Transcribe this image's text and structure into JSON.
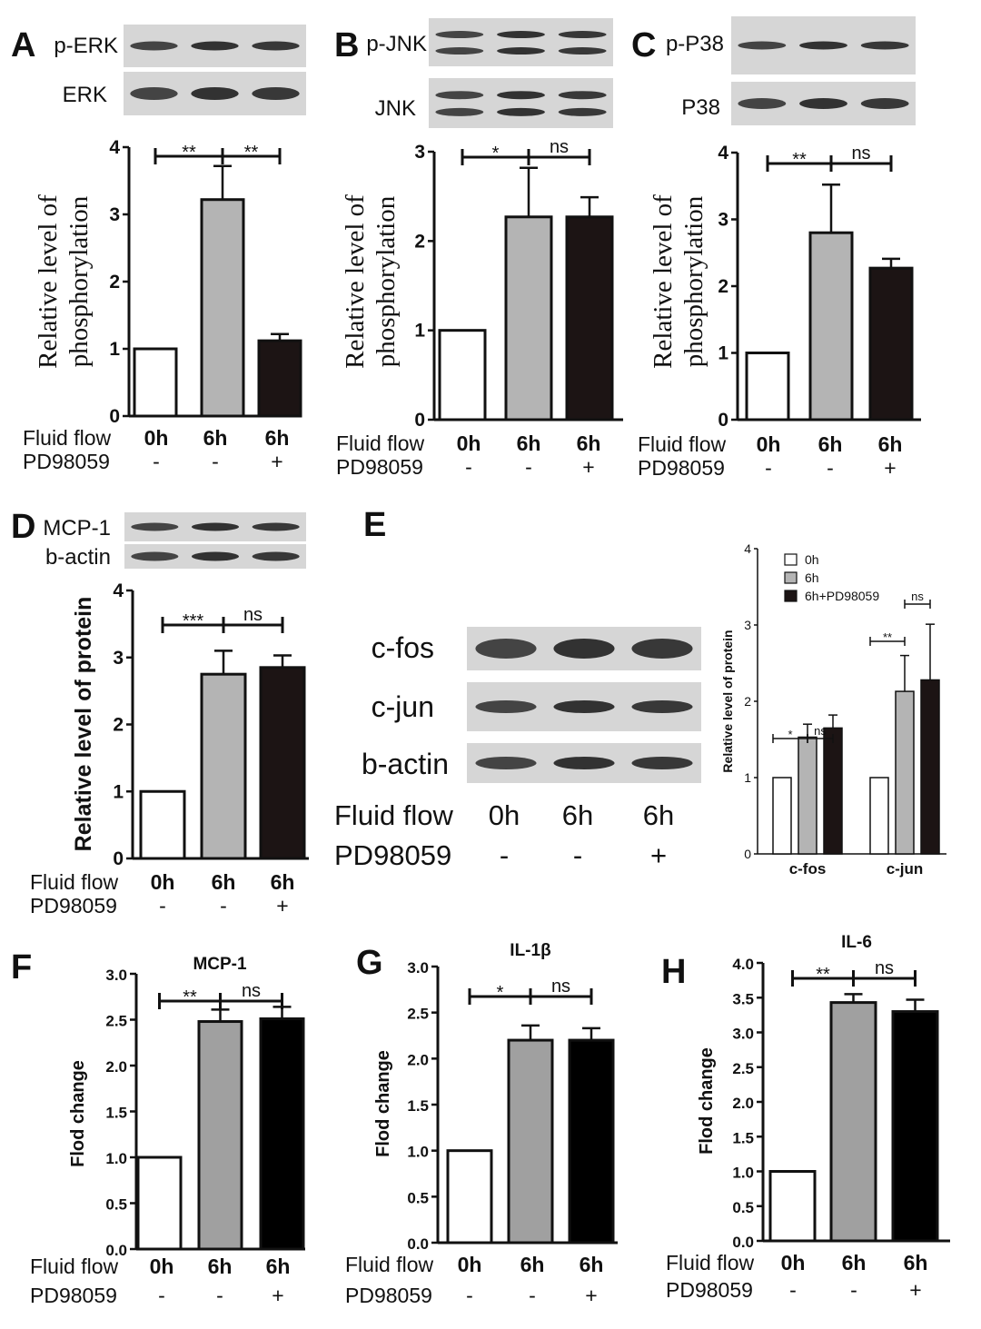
{
  "chart_data": [
    {
      "panel": "A",
      "type": "bar",
      "blots": [
        "p-ERK",
        "ERK"
      ],
      "categories": [
        "0h",
        "6h",
        "6h"
      ],
      "values": [
        1.0,
        3.22,
        1.12
      ],
      "errors": [
        0,
        0.5,
        0.1
      ],
      "fills": [
        "#ffffff",
        "#b4b4b4",
        "#1c1414"
      ],
      "ylabel": [
        "Relative level of",
        "phosphorylation"
      ],
      "ylim": [
        0,
        4
      ],
      "yticks": [
        "0",
        "1",
        "2",
        "3",
        "4"
      ],
      "conditions": [
        {
          "label": "Fluid flow",
          "values": [
            "0h",
            "6h",
            "6h"
          ]
        },
        {
          "label": "PD98059",
          "values": [
            "-",
            "-",
            "+"
          ]
        }
      ],
      "significance": [
        {
          "from": 0,
          "to": 1,
          "label": "**"
        },
        {
          "from": 1,
          "to": 2,
          "label": "**"
        }
      ]
    },
    {
      "panel": "B",
      "type": "bar",
      "blots": [
        "p-JNK",
        "JNK"
      ],
      "categories": [
        "0h",
        "6h",
        "6h"
      ],
      "values": [
        1.0,
        2.27,
        2.27
      ],
      "errors": [
        0,
        0.55,
        0.22
      ],
      "fills": [
        "#ffffff",
        "#b4b4b4",
        "#1c1414"
      ],
      "ylabel": [
        "Relative level of",
        "phosphorylation"
      ],
      "ylim": [
        0,
        3
      ],
      "yticks": [
        "0",
        "1",
        "2",
        "3"
      ],
      "conditions": [
        {
          "label": "Fluid flow",
          "values": [
            "0h",
            "6h",
            "6h"
          ]
        },
        {
          "label": "PD98059",
          "values": [
            "-",
            "-",
            "+"
          ]
        }
      ],
      "significance": [
        {
          "from": 0,
          "to": 1,
          "label": "*"
        },
        {
          "from": 1,
          "to": 2,
          "label": "ns"
        }
      ]
    },
    {
      "panel": "C",
      "type": "bar",
      "blots": [
        "p-P38",
        "P38"
      ],
      "categories": [
        "0h",
        "6h",
        "6h"
      ],
      "values": [
        1.0,
        2.8,
        2.27
      ],
      "errors": [
        0,
        0.72,
        0.14
      ],
      "fills": [
        "#ffffff",
        "#b4b4b4",
        "#1c1414"
      ],
      "ylabel": [
        "Relative level of",
        "phosphorylation"
      ],
      "ylim": [
        0,
        4
      ],
      "yticks": [
        "0",
        "1",
        "2",
        "3",
        "4"
      ],
      "conditions": [
        {
          "label": "Fluid flow",
          "values": [
            "0h",
            "6h",
            "6h"
          ]
        },
        {
          "label": "PD98059",
          "values": [
            "-",
            "-",
            "+"
          ]
        }
      ],
      "significance": [
        {
          "from": 0,
          "to": 1,
          "label": "**"
        },
        {
          "from": 1,
          "to": 2,
          "label": "ns"
        }
      ]
    },
    {
      "panel": "D",
      "type": "bar",
      "blots": [
        "MCP-1",
        "b-actin"
      ],
      "categories": [
        "0h",
        "6h",
        "6h"
      ],
      "values": [
        1.0,
        2.75,
        2.85
      ],
      "errors": [
        0,
        0.35,
        0.18
      ],
      "fills": [
        "#ffffff",
        "#b4b4b4",
        "#1c1414"
      ],
      "ylabel": [
        "Relative level of protein"
      ],
      "ylim": [
        0,
        4
      ],
      "yticks": [
        "0",
        "1",
        "2",
        "3",
        "4"
      ],
      "conditions": [
        {
          "label": "Fluid flow",
          "values": [
            "0h",
            "6h",
            "6h"
          ]
        },
        {
          "label": "PD98059",
          "values": [
            "-",
            "-",
            "+"
          ]
        }
      ],
      "significance": [
        {
          "from": 0,
          "to": 1,
          "label": "***"
        },
        {
          "from": 1,
          "to": 2,
          "label": "ns"
        }
      ]
    },
    {
      "panel": "E",
      "type": "bar",
      "blots": [
        "c-fos",
        "c-jun",
        "b-actin"
      ],
      "conditions": [
        {
          "label": "Fluid flow",
          "values": [
            "0h",
            "6h",
            "6h"
          ]
        },
        {
          "label": "PD98059",
          "values": [
            "-",
            "-",
            "+"
          ]
        }
      ],
      "categories": [
        "c-fos",
        "c-jun"
      ],
      "series": [
        {
          "name": "0h",
          "values": [
            1.0,
            1.0
          ],
          "errors": [
            0,
            0
          ],
          "fill": "#ffffff"
        },
        {
          "name": "6h",
          "values": [
            1.53,
            2.13
          ],
          "errors": [
            0.17,
            0.47
          ],
          "fill": "#b4b4b4"
        },
        {
          "name": "6h+PD98059",
          "values": [
            1.65,
            2.28
          ],
          "errors": [
            0.17,
            0.73
          ],
          "fill": "#1c1414"
        }
      ],
      "ylabel": [
        "Relative level of protein"
      ],
      "ylim": [
        0,
        4
      ],
      "yticks": [
        "0",
        "1",
        "2",
        "3",
        "4"
      ],
      "legend_position": "top-left",
      "significance": [
        {
          "group": 0,
          "from": 0,
          "to": 1,
          "label": "*"
        },
        {
          "group": 0,
          "from": 1,
          "to": 2,
          "label": "ns"
        },
        {
          "group": 1,
          "from": 0,
          "to": 1,
          "label": "**"
        },
        {
          "group": 1,
          "from": 1,
          "to": 2,
          "label": "ns"
        }
      ]
    },
    {
      "panel": "F",
      "type": "bar",
      "title": "MCP-1",
      "categories": [
        "0h",
        "6h",
        "6h"
      ],
      "values": [
        1.0,
        2.48,
        2.51
      ],
      "errors": [
        0,
        0.13,
        0.13
      ],
      "fills": [
        "#ffffff",
        "#a0a0a0",
        "#000000"
      ],
      "ylabel": [
        "Flod change"
      ],
      "ylim": [
        0,
        3
      ],
      "yticks": [
        "0.0",
        "0.5",
        "1.0",
        "1.5",
        "2.0",
        "2.5",
        "3.0"
      ],
      "conditions": [
        {
          "label": "Fluid flow",
          "values": [
            "0h",
            "6h",
            "6h"
          ]
        },
        {
          "label": "PD98059",
          "values": [
            "-",
            "-",
            "+"
          ]
        }
      ],
      "significance": [
        {
          "from": 0,
          "to": 1,
          "label": "**"
        },
        {
          "from": 1,
          "to": 2,
          "label": "ns"
        }
      ]
    },
    {
      "panel": "G",
      "type": "bar",
      "title": "IL-1β",
      "categories": [
        "0h",
        "6h",
        "6h"
      ],
      "values": [
        1.0,
        2.2,
        2.2
      ],
      "errors": [
        0,
        0.16,
        0.13
      ],
      "fills": [
        "#ffffff",
        "#a0a0a0",
        "#000000"
      ],
      "ylabel": [
        "Flod change"
      ],
      "ylim": [
        0,
        3
      ],
      "yticks": [
        "0.0",
        "0.5",
        "1.0",
        "1.5",
        "2.0",
        "2.5",
        "3.0"
      ],
      "conditions": [
        {
          "label": "Fluid flow",
          "values": [
            "0h",
            "6h",
            "6h"
          ]
        },
        {
          "label": "PD98059",
          "values": [
            "-",
            "-",
            "+"
          ]
        }
      ],
      "significance": [
        {
          "from": 0,
          "to": 1,
          "label": "*"
        },
        {
          "from": 1,
          "to": 2,
          "label": "ns"
        }
      ]
    },
    {
      "panel": "H",
      "type": "bar",
      "title": "IL-6",
      "categories": [
        "0h",
        "6h",
        "6h"
      ],
      "values": [
        1.0,
        3.43,
        3.3
      ],
      "errors": [
        0,
        0.12,
        0.17
      ],
      "fills": [
        "#ffffff",
        "#a0a0a0",
        "#000000"
      ],
      "ylabel": [
        "Flod change"
      ],
      "ylim": [
        0,
        4
      ],
      "yticks": [
        "0.0",
        "0.5",
        "1.0",
        "1.5",
        "2.0",
        "2.5",
        "3.0",
        "3.5",
        "4.0"
      ],
      "conditions": [
        {
          "label": "Fluid flow",
          "values": [
            "0h",
            "6h",
            "6h"
          ]
        },
        {
          "label": "PD98059",
          "values": [
            "-",
            "-",
            "+"
          ]
        }
      ],
      "significance": [
        {
          "from": 0,
          "to": 1,
          "label": "**"
        },
        {
          "from": 1,
          "to": 2,
          "label": "ns"
        }
      ]
    }
  ]
}
